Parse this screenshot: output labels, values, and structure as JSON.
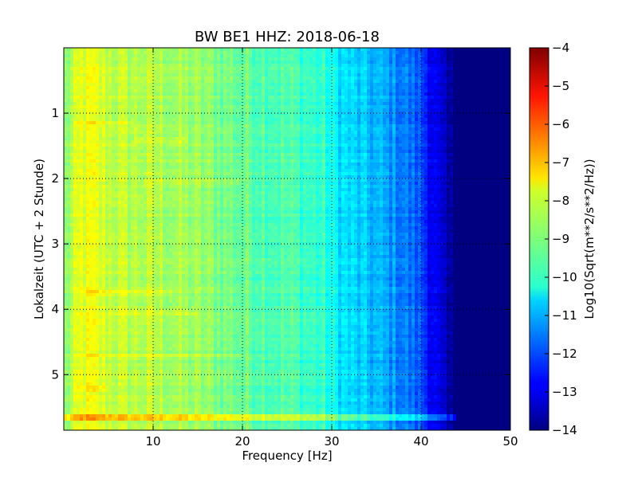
{
  "chart_data": {
    "type": "heatmap",
    "title": "BW BE1 HHZ: 2018-06-18",
    "xlabel": "Frequency [Hz]",
    "ylabel": "Lokalzeit (UTC + 2 Stunde)",
    "xlim": [
      0,
      50
    ],
    "ylim": [
      5.85,
      0
    ],
    "x_ticks": [
      10,
      20,
      30,
      40,
      50
    ],
    "y_ticks": [
      1,
      2,
      3,
      4,
      5
    ],
    "grid": true,
    "colormap": "jet",
    "colorbar": {
      "label": "Log10(Sqrt(m**2/s**2/Hz))",
      "range": [
        -14,
        -4
      ],
      "ticks": [
        -4,
        -5,
        -6,
        -7,
        -8,
        -9,
        -10,
        -11,
        -12,
        -13,
        -14
      ]
    },
    "freq_profile": {
      "frequency_hz": [
        0,
        1,
        2,
        3,
        5,
        8,
        10,
        15,
        20,
        25,
        29,
        30,
        31,
        33,
        35,
        38,
        40,
        41,
        42,
        43,
        44,
        45,
        50
      ],
      "log_psd": [
        -9.0,
        -8.5,
        -8.0,
        -8.0,
        -8.3,
        -8.5,
        -8.5,
        -8.8,
        -9.2,
        -9.5,
        -9.8,
        -10.2,
        -10.5,
        -10.8,
        -11.0,
        -11.5,
        -12.0,
        -12.6,
        -13.2,
        -13.8,
        -14.0,
        -14.0,
        -14.0
      ]
    },
    "events": [
      {
        "time": 1.15,
        "fmin": 1,
        "fmax": 8,
        "delta": 0.5
      },
      {
        "time": 1.4,
        "fmin": 8,
        "fmax": 14,
        "delta": 0.35
      },
      {
        "time": 2.05,
        "fmin": 9,
        "fmax": 20,
        "delta": 0.3
      },
      {
        "time": 3.75,
        "fmin": 2,
        "fmax": 12,
        "delta": 0.35
      },
      {
        "time": 4.05,
        "fmin": 5,
        "fmax": 15,
        "delta": 0.3
      },
      {
        "time": 4.7,
        "fmin": 2,
        "fmax": 20,
        "delta": 0.3
      },
      {
        "time": 5.2,
        "fmin": 1,
        "fmax": 5,
        "delta": 0.45
      },
      {
        "time": 5.65,
        "fmin": 0,
        "fmax": 44,
        "delta": 1.2
      }
    ]
  }
}
